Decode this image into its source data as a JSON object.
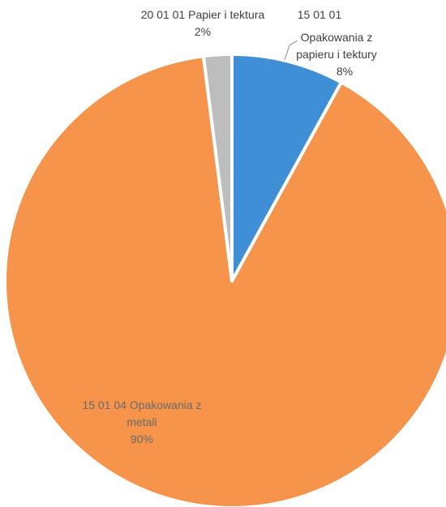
{
  "chart_data": {
    "type": "pie",
    "title": "",
    "slices": [
      {
        "category_line1": "15 01 01",
        "category_line2": "Opakowania z",
        "category_line3": "papieru i tektury",
        "category": "15 01 01 Opakowania z papieru i tektury",
        "value": 8,
        "percent_label": "8%",
        "color": "#3f8fd6"
      },
      {
        "category_line1": "15 01 04 Opakowania z",
        "category_line2": "metali",
        "category": "15 01 04 Opakowania z metali",
        "value": 90,
        "percent_label": "90%",
        "color": "#f5944a"
      },
      {
        "category_line1": "20 01 01 Papier i tektura",
        "category": "20 01 01 Papier i tektura",
        "value": 2,
        "percent_label": "2%",
        "color": "#bdbdbd"
      }
    ],
    "legend": "none",
    "edge_color": "#ffffff"
  }
}
